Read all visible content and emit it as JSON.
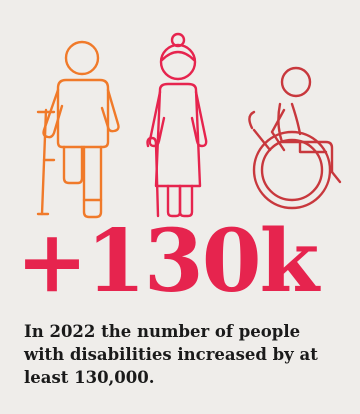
{
  "infographic": {
    "stat": "+130k",
    "caption": "In 2022 the number of people with disabilities increased by at least 130,000."
  },
  "icons": [
    {
      "name": "amputee-crutch-person-icon"
    },
    {
      "name": "elderly-woman-cane-icon"
    },
    {
      "name": "wheelchair-user-icon"
    }
  ],
  "colors": {
    "background": "#efedea",
    "accent": "#e6244e",
    "amputee_icon": "#f07a2a",
    "elderly_icon": "#e6244e",
    "wheelchair_icon": "#c8383d",
    "text": "#1a1a1a"
  }
}
